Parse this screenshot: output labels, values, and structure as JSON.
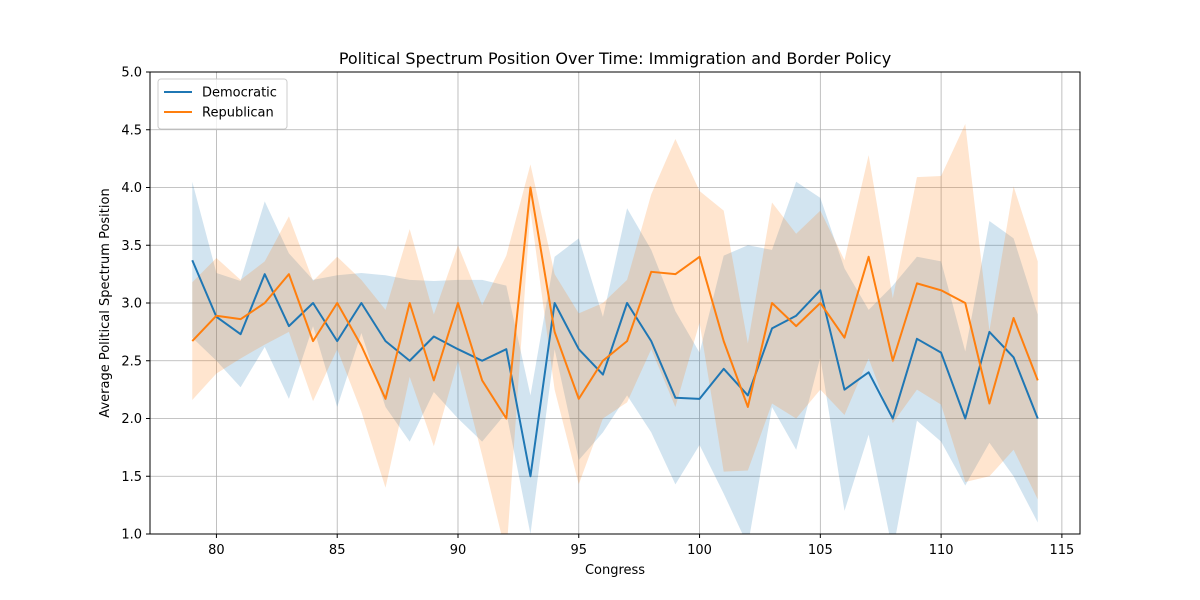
{
  "chart_data": {
    "type": "line",
    "title": "Political Spectrum Position Over Time: Immigration and Border Policy",
    "xlabel": "Congress",
    "ylabel": "Average Political Spectrum Position",
    "xlim": [
      77.25,
      115.75
    ],
    "ylim": [
      1.0,
      5.0
    ],
    "xticks": [
      80,
      85,
      90,
      95,
      100,
      105,
      110,
      115
    ],
    "yticks": [
      1.0,
      1.5,
      2.0,
      2.5,
      3.0,
      3.5,
      4.0,
      4.5,
      5.0
    ],
    "grid": true,
    "legend_position": "upper-left",
    "x": [
      79,
      80,
      81,
      82,
      83,
      84,
      85,
      86,
      87,
      88,
      89,
      90,
      91,
      92,
      93,
      94,
      95,
      96,
      97,
      98,
      99,
      100,
      101,
      102,
      103,
      104,
      105,
      106,
      107,
      108,
      109,
      110,
      111,
      112,
      113,
      114
    ],
    "series": [
      {
        "name": "Democratic",
        "color": "#1f77b4",
        "values": [
          3.37,
          2.88,
          2.73,
          3.25,
          2.8,
          3.0,
          2.67,
          3.0,
          2.67,
          2.5,
          2.71,
          2.6,
          2.5,
          2.6,
          1.5,
          3.0,
          2.6,
          2.38,
          3.0,
          2.67,
          2.18,
          2.17,
          2.43,
          2.2,
          2.78,
          2.89,
          3.11,
          2.25,
          2.4,
          2.0,
          2.69,
          2.57,
          2.0,
          2.75,
          2.53,
          2.0
        ],
        "lower": [
          2.7,
          2.5,
          2.27,
          2.62,
          2.17,
          2.8,
          2.1,
          2.74,
          2.1,
          1.8,
          2.23,
          2.0,
          1.8,
          2.05,
          1.0,
          2.6,
          1.64,
          1.88,
          2.2,
          1.88,
          1.43,
          1.77,
          1.35,
          0.9,
          2.1,
          1.73,
          2.53,
          1.2,
          1.86,
          0.85,
          1.98,
          1.8,
          1.42,
          1.79,
          1.5,
          1.1
        ],
        "upper": [
          4.05,
          3.26,
          3.19,
          3.88,
          3.43,
          3.2,
          3.24,
          3.26,
          3.24,
          3.2,
          3.19,
          3.2,
          3.2,
          3.15,
          2.2,
          3.4,
          3.56,
          2.88,
          3.82,
          3.46,
          2.93,
          2.57,
          3.41,
          3.5,
          3.46,
          4.05,
          3.91,
          3.3,
          2.94,
          3.15,
          3.4,
          3.36,
          2.58,
          3.71,
          3.56,
          2.9
        ]
      },
      {
        "name": "Republican",
        "color": "#ff7f0e",
        "values": [
          2.67,
          2.89,
          2.86,
          3.0,
          3.25,
          2.67,
          3.0,
          2.63,
          2.17,
          3.0,
          2.33,
          3.0,
          2.33,
          2.0,
          4.0,
          2.75,
          2.17,
          2.5,
          2.67,
          3.27,
          3.25,
          3.4,
          2.67,
          2.1,
          3.0,
          2.8,
          3.0,
          2.7,
          3.4,
          2.5,
          3.17,
          3.11,
          3.0,
          2.13,
          2.87,
          2.33
        ],
        "lower": [
          2.16,
          2.39,
          2.52,
          2.64,
          2.75,
          2.15,
          2.6,
          2.06,
          1.4,
          2.36,
          1.76,
          2.5,
          1.68,
          0.82,
          3.8,
          2.25,
          1.43,
          2.0,
          2.14,
          2.6,
          2.1,
          2.83,
          1.54,
          1.55,
          2.13,
          2.0,
          2.25,
          2.03,
          2.52,
          1.96,
          2.25,
          2.12,
          1.45,
          1.5,
          1.73,
          1.3
        ],
        "upper": [
          3.18,
          3.39,
          3.2,
          3.36,
          3.75,
          3.19,
          3.4,
          3.2,
          2.94,
          3.64,
          2.9,
          3.5,
          2.98,
          3.41,
          4.2,
          3.25,
          2.91,
          3.0,
          3.2,
          3.94,
          4.42,
          3.97,
          3.8,
          2.65,
          3.87,
          3.6,
          3.8,
          3.37,
          4.28,
          3.04,
          4.09,
          4.1,
          4.55,
          2.76,
          4.01,
          3.36
        ]
      }
    ]
  }
}
